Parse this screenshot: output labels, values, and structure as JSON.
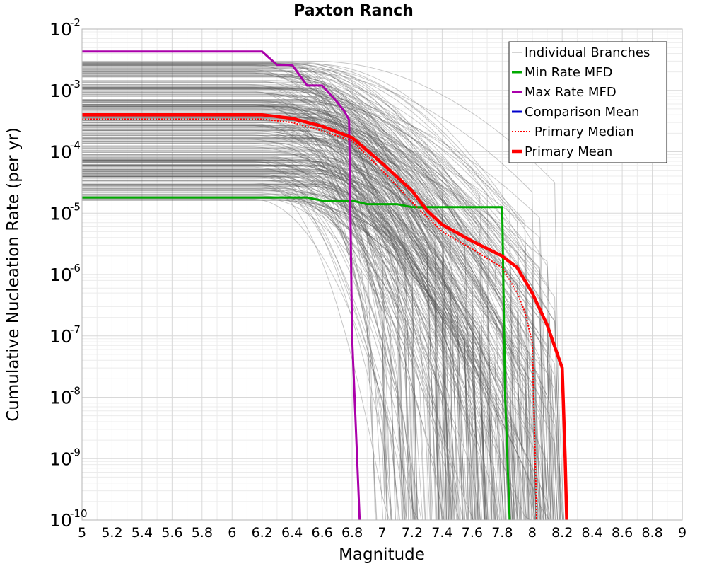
{
  "chart_data": {
    "type": "line",
    "title": "Paxton Ranch",
    "xlabel": "Magnitude",
    "ylabel": "Cumulative Nucleation Rate (per yr)",
    "y_scale": "log",
    "xlim": [
      5,
      9
    ],
    "ylim": [
      1e-10,
      0.01
    ],
    "x_ticks": [
      "5",
      "5.2",
      "5.4",
      "5.6",
      "5.8",
      "6",
      "6.2",
      "6.4",
      "6.6",
      "6.8",
      "7",
      "7.2",
      "7.4",
      "7.6",
      "7.8",
      "8",
      "8.2",
      "8.4",
      "8.6",
      "8.8",
      "9"
    ],
    "y_ticks": [
      {
        "base": "10",
        "exp": "-10"
      },
      {
        "base": "10",
        "exp": "-9"
      },
      {
        "base": "10",
        "exp": "-8"
      },
      {
        "base": "10",
        "exp": "-7"
      },
      {
        "base": "10",
        "exp": "-6"
      },
      {
        "base": "10",
        "exp": "-5"
      },
      {
        "base": "10",
        "exp": "-4"
      },
      {
        "base": "10",
        "exp": "-3"
      },
      {
        "base": "10",
        "exp": "-2"
      }
    ],
    "grid": true,
    "legend_position": "top-right",
    "series": [
      {
        "name": "Individual Branches",
        "color": "#555555",
        "style": "thin",
        "note_count": 300
      },
      {
        "name": "Min Rate MFD",
        "color": "#00aa00",
        "style": "solid",
        "x": [
          5.0,
          6.5,
          6.6,
          6.8,
          6.9,
          7.1,
          7.2,
          7.8,
          7.82,
          7.85
        ],
        "y": [
          1.8e-05,
          1.8e-05,
          1.6e-05,
          1.6e-05,
          1.4e-05,
          1.4e-05,
          1.25e-05,
          1.25e-05,
          1e-08,
          1e-10
        ]
      },
      {
        "name": "Max Rate MFD",
        "color": "#aa00aa",
        "style": "solid",
        "x": [
          5.0,
          6.2,
          6.3,
          6.4,
          6.5,
          6.6,
          6.7,
          6.75,
          6.78,
          6.8,
          6.85
        ],
        "y": [
          0.0043,
          0.0043,
          0.0026,
          0.0026,
          0.0012,
          0.0012,
          0.00065,
          0.00045,
          0.00033,
          1e-07,
          1e-10
        ]
      },
      {
        "name": "Comparison Mean",
        "color": "#0000cc",
        "style": "solid",
        "x": [],
        "y": []
      },
      {
        "name": "Primary Median",
        "color": "#ff0000",
        "style": "dotted",
        "x": [
          5.0,
          6.2,
          6.4,
          6.6,
          6.8,
          7.0,
          7.2,
          7.4,
          7.6,
          7.8,
          7.9,
          7.95,
          8.0,
          8.02,
          8.03
        ],
        "y": [
          0.00034,
          0.00034,
          0.0003,
          0.00022,
          0.00015,
          5e-05,
          1.5e-05,
          5e-06,
          2.6e-06,
          1.3e-06,
          5e-07,
          2.5e-07,
          8e-08,
          1e-09,
          1e-10
        ]
      },
      {
        "name": "Primary Mean",
        "color": "#ff0000",
        "style": "thick",
        "x": [
          5.0,
          6.2,
          6.4,
          6.6,
          6.8,
          7.0,
          7.2,
          7.3,
          7.4,
          7.6,
          7.8,
          7.9,
          8.0,
          8.1,
          8.2,
          8.22,
          8.23
        ],
        "y": [
          0.0004,
          0.0004,
          0.00035,
          0.00026,
          0.00017,
          6.5e-05,
          2.3e-05,
          1.1e-05,
          6.5e-06,
          3.5e-06,
          2e-06,
          1.3e-06,
          5e-07,
          1.5e-07,
          3e-08,
          1e-09,
          1e-10
        ]
      }
    ]
  }
}
